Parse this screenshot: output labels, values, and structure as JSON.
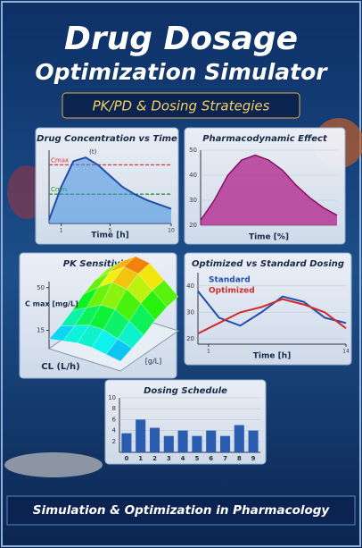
{
  "title_line1": "Drug Dosage",
  "title_line2": "Optimization Simulator",
  "subtitle": "PK/PD & Dosing Strategies",
  "footer": "Simulation & Optimization in Pharmacology",
  "chart_data": [
    {
      "type": "line",
      "title": "Drug Concentration vs Time",
      "x_label": "Time [h]",
      "x": [
        0,
        1,
        2,
        3,
        4,
        5,
        6,
        7,
        8,
        9,
        10
      ],
      "values": [
        0.5,
        5,
        8.5,
        9,
        8,
        6.5,
        5,
        4,
        3.2,
        2.6,
        2
      ],
      "color": "#1f4fa8",
      "fill": true,
      "xlim": [
        0,
        10
      ],
      "ylim": [
        0,
        10
      ],
      "xticks": [
        1,
        5,
        10
      ],
      "reference_lines": [
        {
          "label": "Cmax",
          "value": 8,
          "color": "#e03030"
        },
        {
          "label": "Cmin",
          "value": 4,
          "color": "#2a9a2a"
        }
      ],
      "annotations": [
        "(t)"
      ]
    },
    {
      "type": "area",
      "title": "Pharmacodynamic Effect",
      "x_label": "Time [%]",
      "x": [
        0,
        1,
        2,
        3,
        4,
        5,
        6,
        7,
        8,
        9,
        10
      ],
      "values": [
        22,
        30,
        40,
        46,
        48,
        46,
        42,
        36,
        31,
        27,
        24
      ],
      "color": "#b0208a",
      "xlim": [
        0,
        10
      ],
      "ylim": [
        20,
        50
      ],
      "yticks": [
        20,
        30,
        40,
        50
      ],
      "grid": true
    },
    {
      "type": "surface",
      "title": "PK Sensitivity",
      "x_label": "CL (L/h)",
      "y_label": "[g/L]",
      "z_label": "C max [mg/L]",
      "z": [
        [
          8,
          12,
          18,
          25,
          30,
          32
        ],
        [
          10,
          16,
          24,
          34,
          40,
          42
        ],
        [
          12,
          20,
          30,
          42,
          48,
          50
        ],
        [
          12,
          20,
          30,
          40,
          46,
          48
        ],
        [
          10,
          16,
          24,
          32,
          36,
          38
        ],
        [
          8,
          12,
          16,
          22,
          26,
          28
        ]
      ],
      "zlim": [
        0,
        55
      ],
      "zticks": [
        15,
        50
      ]
    },
    {
      "type": "line",
      "title": "Optimized vs Standard Dosing",
      "x_label": "Time [h]",
      "x": [
        0,
        2,
        4,
        6,
        8,
        10,
        12,
        14
      ],
      "series": [
        {
          "name": "Standard",
          "color": "#1f4fb0",
          "values": [
            38,
            28,
            25,
            30,
            36,
            34,
            28,
            26
          ]
        },
        {
          "name": "Optimized",
          "color": "#d42a2a",
          "values": [
            22,
            26,
            30,
            32,
            35,
            33,
            30,
            24
          ]
        }
      ],
      "xlim": [
        0,
        14
      ],
      "ylim": [
        18,
        45
      ],
      "yticks": [
        20,
        30,
        40
      ],
      "xticks": [
        1,
        14
      ],
      "grid": true,
      "legend": "upper left"
    },
    {
      "type": "bar",
      "title": "Dosing Schedule",
      "categories": [
        "0",
        "1",
        "2",
        "3",
        "4",
        "5",
        "6",
        "7",
        "8",
        "9"
      ],
      "values": [
        3.5,
        6,
        4.5,
        3,
        4,
        3,
        4,
        3,
        5,
        4
      ],
      "color": "#2a5db0",
      "ylim": [
        0,
        10
      ],
      "yticks": [
        2,
        4,
        6,
        8,
        10
      ],
      "grid": true
    }
  ]
}
